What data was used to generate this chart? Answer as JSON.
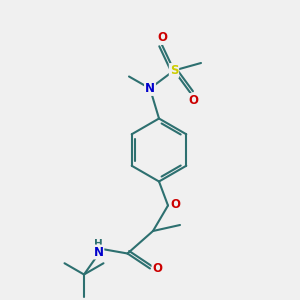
{
  "bg_color": "#f0f0f0",
  "atom_colors": {
    "C": "#2d7070",
    "N": "#0000cc",
    "O": "#cc0000",
    "S": "#cccc00",
    "H": "#2d7070"
  },
  "bond_color": "#2d7070",
  "bond_width": 1.5,
  "dbo": 0.01,
  "font_size_atom": 8.5,
  "figsize": [
    3.0,
    3.0
  ],
  "dpi": 100
}
